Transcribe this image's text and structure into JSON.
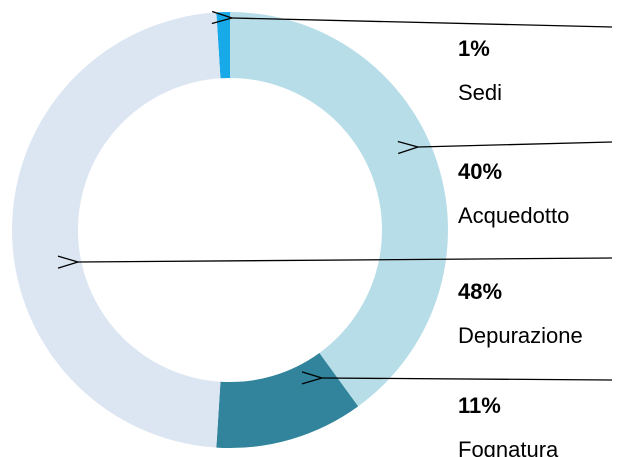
{
  "chart_data": {
    "type": "donut",
    "categories": [
      "Sedi",
      "Acquedotto",
      "Fognatura",
      "Depurazione"
    ],
    "values": [
      1,
      40,
      11,
      48
    ],
    "value_labels": [
      "1%",
      "40%",
      "11%",
      "48%"
    ],
    "colors": [
      "#17a9e8",
      "#b7dde8",
      "#31849b",
      "#dce6f2"
    ]
  }
}
